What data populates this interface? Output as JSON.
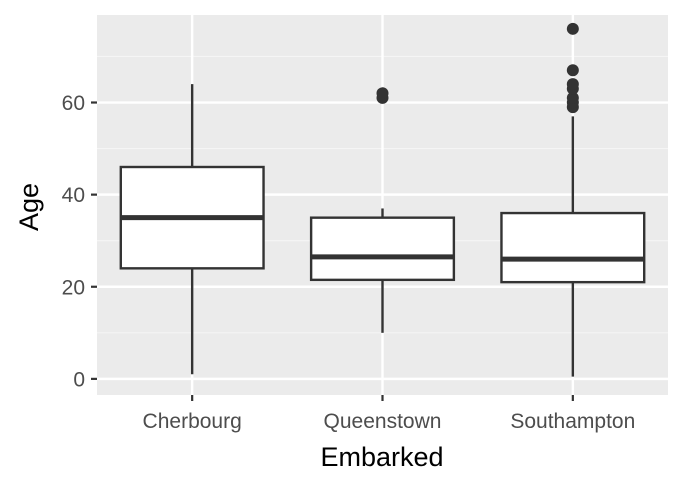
{
  "chart_data": {
    "type": "boxplot",
    "title": "",
    "xlabel": "Embarked",
    "ylabel": "Age",
    "ylim": [
      -3.5,
      79
    ],
    "yticks": [
      0,
      20,
      40,
      60
    ],
    "grid": true,
    "legend": "none",
    "categories": [
      "Cherbourg",
      "Queenstown",
      "Southampton"
    ],
    "boxes": [
      {
        "category": "Cherbourg",
        "whisker_low": 1,
        "q1": 24,
        "median": 35,
        "q3": 46,
        "whisker_high": 64,
        "outliers": []
      },
      {
        "category": "Queenstown",
        "whisker_low": 10,
        "q1": 21.5,
        "median": 26.5,
        "q3": 35,
        "whisker_high": 37,
        "outliers": [
          61,
          62
        ]
      },
      {
        "category": "Southampton",
        "whisker_low": 0.5,
        "q1": 21,
        "median": 26,
        "q3": 36,
        "whisker_high": 57,
        "outliers": [
          59,
          60,
          61,
          63,
          64,
          67,
          76
        ]
      }
    ],
    "colors": {
      "panel": "#EBEBEB",
      "grid_major": "#FFFFFF",
      "grid_minor": "#F5F5F5",
      "box_fill": "#FFFFFF",
      "box_line": "#333333",
      "tick": "#333333",
      "tick_text": "#4D4D4D"
    }
  }
}
